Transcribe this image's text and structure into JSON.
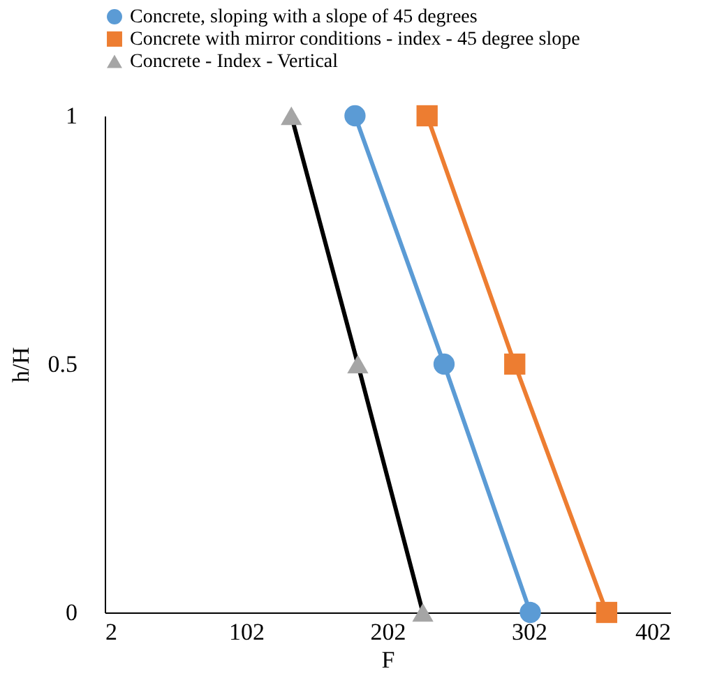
{
  "chart_data": {
    "type": "line",
    "xlabel": "F",
    "ylabel": "h/H",
    "xlim": [
      2,
      402
    ],
    "xticks": [
      2,
      102,
      202,
      302,
      402
    ],
    "ylim": [
      0,
      1
    ],
    "yticks": [
      0,
      0.5,
      1
    ],
    "grid": false,
    "legend": "top",
    "line_style": "solid",
    "series": [
      {
        "name": "Concrete, sloping with a slope of 45 degrees",
        "color": "#5b9bd5",
        "marker": "circle",
        "x": [
          179,
          242,
          303
        ],
        "values": [
          1,
          0.5,
          0
        ]
      },
      {
        "name": "Concrete with mirror conditions - index - 45 degree slope",
        "color": "#ed7d31",
        "marker": "square",
        "x": [
          230,
          292,
          357
        ],
        "values": [
          1,
          0.5,
          0
        ]
      },
      {
        "name": "Concrete - Index - Vertical",
        "color": "#000000",
        "colors": [
          "#a5a5a5",
          "#a5a5a5",
          "#a5a5a5"
        ],
        "marker": "triangle",
        "x": [
          134,
          181,
          227
        ],
        "values": [
          1,
          0.5,
          0
        ]
      }
    ]
  }
}
